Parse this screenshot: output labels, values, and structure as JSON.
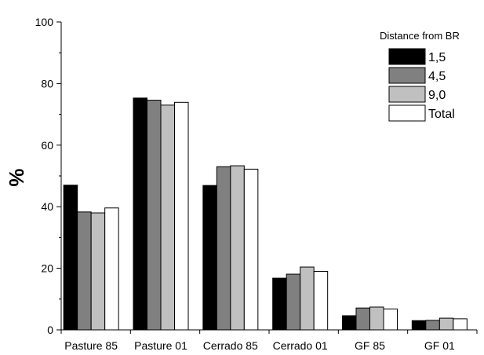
{
  "chart_data": {
    "type": "bar",
    "title": "",
    "xlabel": "",
    "ylabel": "%",
    "ylim": [
      0,
      100
    ],
    "yticks": [
      0,
      20,
      40,
      60,
      80,
      100
    ],
    "grid": false,
    "legend_placement": "top-right",
    "legend_title": "Distance from BR",
    "categories": [
      "Pasture 85",
      "Pasture 01",
      "Cerrado 85",
      "Cerrado 01",
      "GF 85",
      "GF 01"
    ],
    "series": [
      {
        "name": "1,5",
        "color": "#000000",
        "values": [
          47.0,
          75.3,
          46.9,
          16.8,
          4.6,
          3.0
        ]
      },
      {
        "name": "4,5",
        "color": "#808080",
        "values": [
          38.3,
          74.6,
          53.0,
          18.1,
          7.1,
          3.1
        ]
      },
      {
        "name": "9,0",
        "color": "#c0c0c0",
        "values": [
          38.0,
          73.0,
          53.3,
          20.4,
          7.4,
          3.8
        ]
      },
      {
        "name": "Total",
        "color": "#ffffff",
        "values": [
          39.6,
          73.9,
          52.2,
          19.0,
          6.8,
          3.6
        ]
      }
    ]
  }
}
